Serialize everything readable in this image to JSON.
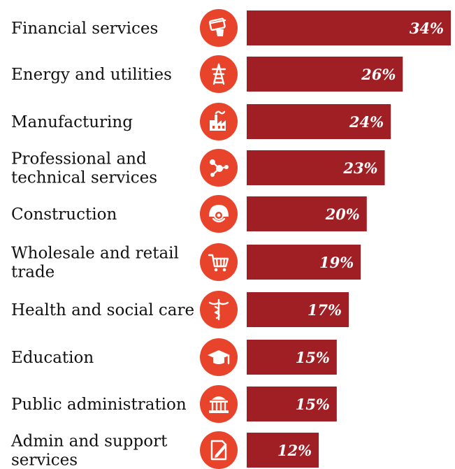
{
  "colors": {
    "bar": "#a01f24",
    "icon_circle": "#e8442c",
    "label": "#111111",
    "value_text": "#ffffff"
  },
  "chart_data": {
    "type": "bar",
    "orientation": "horizontal",
    "categories": [
      [
        "Financial services"
      ],
      [
        "Energy and utilities"
      ],
      [
        "Manufacturing"
      ],
      [
        "Professional and",
        "technical services"
      ],
      [
        "Construction"
      ],
      [
        "Wholesale and retail",
        "trade"
      ],
      [
        "Health and social care"
      ],
      [
        "Education"
      ],
      [
        "Public administration"
      ],
      [
        "Admin and support",
        "services"
      ]
    ],
    "values": [
      34,
      26,
      24,
      23,
      20,
      19,
      17,
      15,
      15,
      12
    ],
    "value_labels": [
      "34%",
      "26%",
      "24%",
      "23%",
      "20%",
      "19%",
      "17%",
      "15%",
      "15%",
      "12%"
    ],
    "icons": [
      "credit-card-icon",
      "power-pylon-icon",
      "factory-icon",
      "network-nodes-icon",
      "hard-hat-icon",
      "shopping-cart-icon",
      "caduceus-icon",
      "graduation-cap-icon",
      "government-building-icon",
      "document-pen-icon"
    ]
  }
}
